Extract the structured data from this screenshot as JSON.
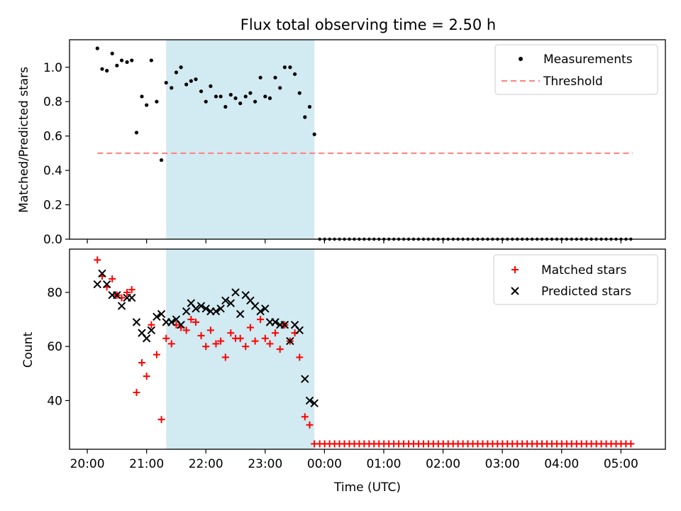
{
  "title": "Flux total observing time = 2.50 h",
  "chart_data": [
    {
      "type": "scatter",
      "ylabel": "Matched/Predicted stars",
      "xlim": [
        19.7,
        29.75
      ],
      "ylim": [
        0,
        1.16
      ],
      "y_ticks": [
        "0.0",
        "0.2",
        "0.4",
        "0.6",
        "0.8",
        "1.0"
      ],
      "y_tick_values": [
        0,
        0.2,
        0.4,
        0.6,
        0.8,
        1.0
      ],
      "shaded_region": {
        "x_start": 21.33,
        "x_end": 23.83,
        "color": "#add8e6"
      },
      "legend": {
        "placement": "top-right"
      },
      "threshold": {
        "name": "Threshold",
        "value": 0.5,
        "x_start": 20.17,
        "x_end": 29.2,
        "color": "#ff7f7f"
      },
      "series": [
        {
          "name": "Measurements",
          "color": "#000000",
          "x": [
            20.17,
            20.25,
            20.33,
            20.42,
            20.5,
            20.58,
            20.67,
            20.75,
            20.83,
            20.92,
            21.0,
            21.08,
            21.17,
            21.25,
            21.33,
            21.42,
            21.5,
            21.58,
            21.67,
            21.75,
            21.83,
            21.92,
            22.0,
            22.08,
            22.17,
            22.25,
            22.33,
            22.42,
            22.5,
            22.58,
            22.67,
            22.75,
            22.83,
            22.92,
            23.0,
            23.08,
            23.17,
            23.25,
            23.33,
            23.42,
            23.5,
            23.58,
            23.67,
            23.75,
            23.83
          ],
          "y": [
            1.11,
            0.99,
            0.98,
            1.08,
            1.01,
            1.04,
            1.03,
            1.04,
            0.62,
            0.83,
            0.78,
            1.04,
            0.8,
            0.46,
            0.91,
            0.88,
            0.97,
            1.0,
            0.9,
            0.92,
            0.93,
            0.86,
            0.8,
            0.89,
            0.83,
            0.83,
            0.77,
            0.84,
            0.82,
            0.79,
            0.83,
            0.85,
            0.8,
            0.94,
            0.83,
            0.82,
            0.94,
            0.88,
            1.0,
            1.0,
            0.96,
            0.85,
            0.71,
            0.77,
            0.61
          ],
          "zero_from": 23.92,
          "zero_to": 29.25,
          "zero_step": 0.0833
        }
      ]
    },
    {
      "type": "scatter",
      "xlabel": "Time (UTC)",
      "ylabel": "Count",
      "xlim": [
        19.7,
        29.75
      ],
      "ylim": [
        22,
        96
      ],
      "y_ticks": [
        "40",
        "60",
        "80"
      ],
      "y_tick_values": [
        40,
        60,
        80
      ],
      "x_ticks": [
        "20:00",
        "21:00",
        "22:00",
        "23:00",
        "00:00",
        "01:00",
        "02:00",
        "03:00",
        "04:00",
        "05:00"
      ],
      "x_tick_values": [
        20,
        21,
        22,
        23,
        24,
        25,
        26,
        27,
        28,
        29
      ],
      "shaded_region": {
        "x_start": 21.33,
        "x_end": 23.83,
        "color": "#add8e6"
      },
      "legend": {
        "placement": "top-right"
      },
      "series": [
        {
          "name": "Matched stars",
          "color": "#ff0000",
          "x": [
            20.17,
            20.25,
            20.33,
            20.42,
            20.5,
            20.58,
            20.67,
            20.75,
            20.83,
            20.92,
            21.0,
            21.08,
            21.17,
            21.25,
            21.33,
            21.42,
            21.5,
            21.58,
            21.67,
            21.75,
            21.83,
            21.92,
            22.0,
            22.08,
            22.17,
            22.25,
            22.33,
            22.42,
            22.5,
            22.58,
            22.67,
            22.75,
            22.83,
            22.92,
            23.0,
            23.08,
            23.17,
            23.25,
            23.33,
            23.42,
            23.5,
            23.58,
            23.67,
            23.75,
            23.83
          ],
          "y": [
            92,
            86,
            82,
            85,
            79,
            78,
            80,
            81,
            43,
            54,
            49,
            68,
            57,
            33,
            63,
            61,
            68,
            67,
            66,
            70,
            69,
            64,
            60,
            66,
            61,
            62,
            56,
            65,
            63,
            63,
            60,
            67,
            62,
            70,
            63,
            61,
            65,
            59,
            68,
            62,
            65,
            56,
            34,
            31,
            24
          ],
          "floor_from": 23.92,
          "floor_to": 29.25,
          "floor_step": 0.0833,
          "floor_value": 24
        },
        {
          "name": "Predicted stars",
          "color": "#000000",
          "x": [
            20.17,
            20.25,
            20.33,
            20.42,
            20.5,
            20.58,
            20.67,
            20.75,
            20.83,
            20.92,
            21.0,
            21.08,
            21.17,
            21.25,
            21.33,
            21.42,
            21.5,
            21.58,
            21.67,
            21.75,
            21.83,
            21.92,
            22.0,
            22.08,
            22.17,
            22.25,
            22.33,
            22.42,
            22.5,
            22.58,
            22.67,
            22.75,
            22.83,
            22.92,
            23.0,
            23.08,
            23.17,
            23.25,
            23.33,
            23.42,
            23.5,
            23.58,
            23.67,
            23.75,
            23.83
          ],
          "y": [
            83,
            87,
            83,
            79,
            79,
            75,
            78,
            78,
            69,
            65,
            63,
            66,
            71,
            72,
            69,
            69,
            70,
            68,
            73,
            76,
            74,
            75,
            74,
            73,
            73,
            74,
            77,
            76,
            80,
            72,
            79,
            77,
            75,
            73,
            74,
            69,
            69,
            68,
            68,
            62,
            68,
            66,
            48,
            40,
            39
          ]
        }
      ]
    }
  ]
}
